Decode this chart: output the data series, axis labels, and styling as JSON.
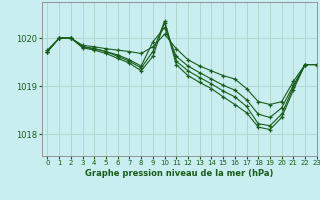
{
  "title": "Graphe pression niveau de la mer (hPa)",
  "background_color": "#c8eef0",
  "grid_color": "#b0d8d0",
  "line_color": "#1a5c1a",
  "xlim": [
    -0.5,
    23
  ],
  "ylim": [
    1017.55,
    1020.75
  ],
  "yticks": [
    1018,
    1019,
    1020
  ],
  "xticks": [
    0,
    1,
    2,
    3,
    4,
    5,
    6,
    7,
    8,
    9,
    10,
    11,
    12,
    13,
    14,
    15,
    16,
    17,
    18,
    19,
    20,
    21,
    22,
    23
  ],
  "series": [
    [
      1019.75,
      1020.0,
      1020.0,
      1019.85,
      1019.82,
      1019.78,
      1019.75,
      1019.72,
      1019.68,
      1019.82,
      1020.08,
      1019.78,
      1019.55,
      1019.42,
      1019.32,
      1019.22,
      1019.15,
      1018.95,
      1018.68,
      1018.62,
      1018.68,
      1019.1,
      1019.45,
      1019.45
    ],
    [
      1019.72,
      1020.0,
      1020.0,
      1019.82,
      1019.78,
      1019.72,
      1019.65,
      1019.55,
      1019.42,
      1019.92,
      1020.22,
      1019.62,
      1019.42,
      1019.28,
      1019.15,
      1019.02,
      1018.92,
      1018.72,
      1018.42,
      1018.35,
      1018.55,
      1019.02,
      1019.45,
      1019.45
    ],
    [
      1019.72,
      1020.0,
      1020.0,
      1019.82,
      1019.78,
      1019.72,
      1019.62,
      1019.52,
      1019.38,
      1019.72,
      1020.35,
      1019.52,
      1019.32,
      1019.18,
      1019.05,
      1018.9,
      1018.78,
      1018.58,
      1018.22,
      1018.18,
      1018.42,
      1018.98,
      1019.45,
      1019.45
    ],
    [
      1019.72,
      1020.0,
      1020.0,
      1019.8,
      1019.75,
      1019.68,
      1019.58,
      1019.48,
      1019.32,
      1019.62,
      1020.32,
      1019.45,
      1019.22,
      1019.08,
      1018.95,
      1018.78,
      1018.62,
      1018.45,
      1018.15,
      1018.1,
      1018.35,
      1018.92,
      1019.45,
      1019.45
    ]
  ]
}
